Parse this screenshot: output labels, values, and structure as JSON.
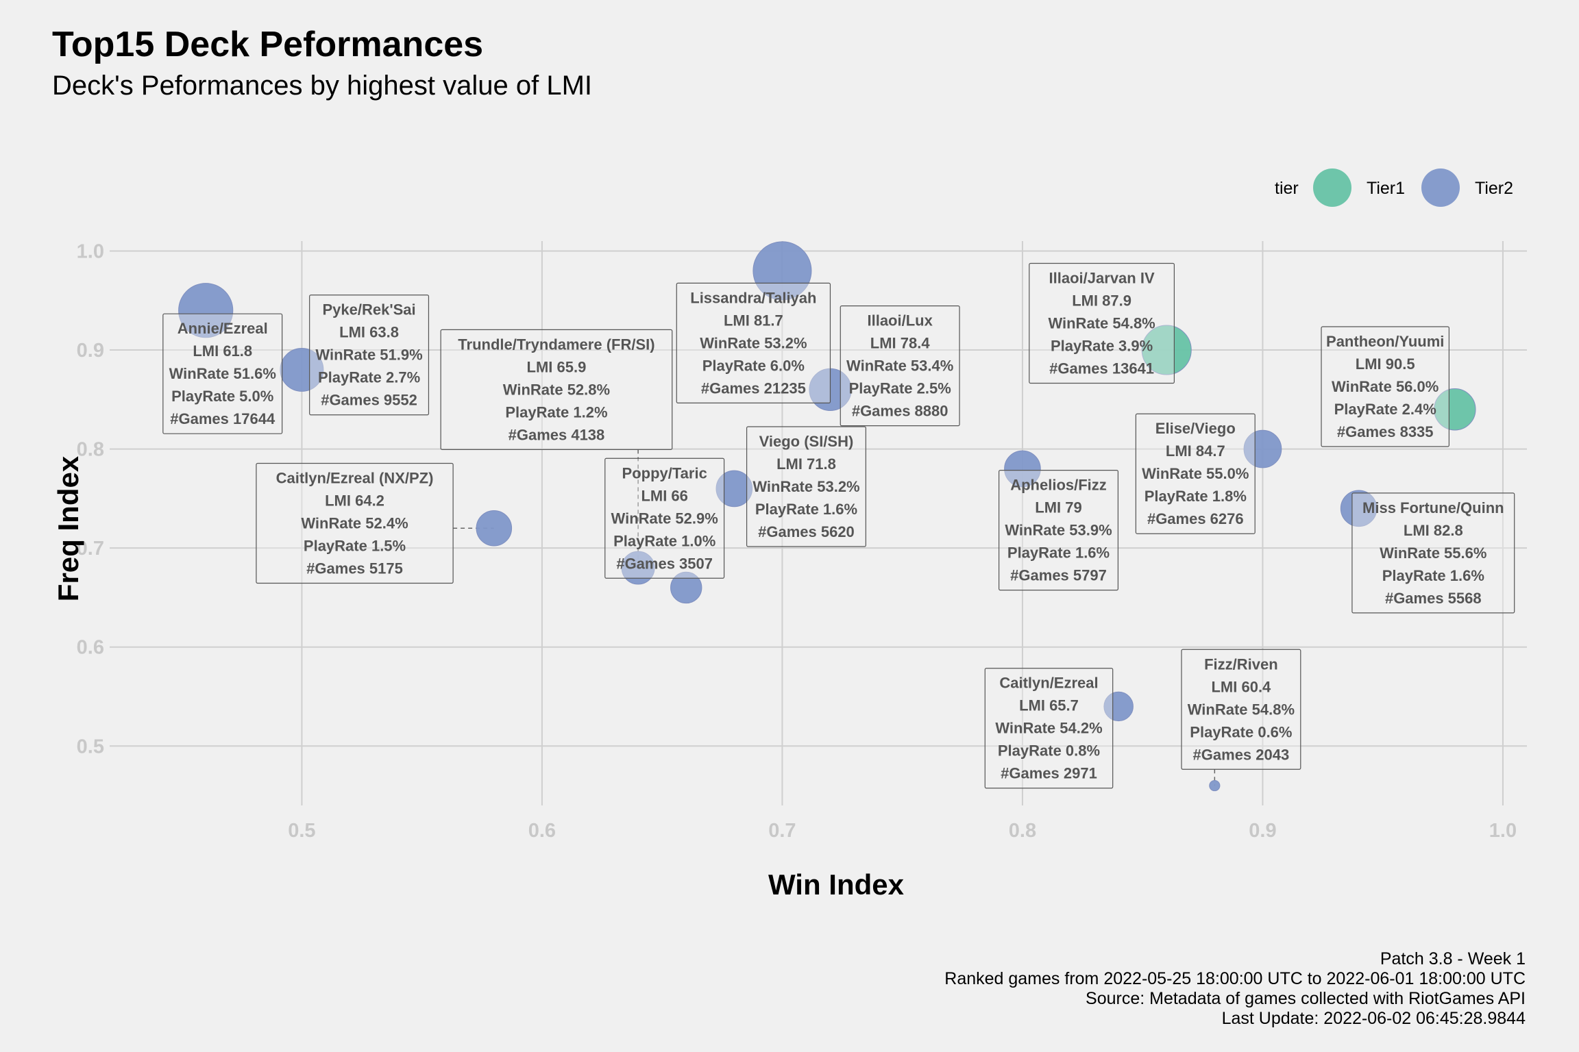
{
  "chart_data": {
    "type": "scatter",
    "title": "Top15 Deck Peformances",
    "subtitle": "Deck's Peformances by highest value of LMI",
    "xlabel": "Win Index",
    "ylabel": "Freq Index",
    "xlim": [
      0.42,
      1.01
    ],
    "ylim": [
      0.44,
      1.01
    ],
    "xticks": [
      "0.5",
      "0.6",
      "0.7",
      "0.8",
      "0.9",
      "1.0"
    ],
    "yticks": [
      "0.5",
      "0.6",
      "0.7",
      "0.8",
      "0.9",
      "1.0"
    ],
    "grid": true,
    "legend": {
      "title": "tier",
      "position": "top-right",
      "entries": [
        {
          "name": "Tier1",
          "color": "#66c2a5"
        },
        {
          "name": "Tier2",
          "color": "#7f97c9"
        }
      ]
    },
    "points": [
      {
        "deck": "Annie/Ezreal",
        "tier": "Tier2",
        "x": 0.46,
        "y": 0.94,
        "lmi": "61.8",
        "winrate": "51.6%",
        "playrate": "5.0%",
        "games": "17644",
        "lx": 0.467,
        "ly": 0.876
      },
      {
        "deck": "Pyke/Rek'Sai",
        "tier": "Tier2",
        "x": 0.5,
        "y": 0.88,
        "lmi": "63.8",
        "winrate": "51.9%",
        "playrate": "2.7%",
        "games": "9552",
        "lx": 0.528,
        "ly": 0.895
      },
      {
        "deck": "Trundle/Tryndamere (FR/SI)",
        "tier": "Tier2",
        "x": 0.64,
        "y": 0.68,
        "lmi": "65.9",
        "winrate": "52.8%",
        "playrate": "1.2%",
        "games": "4138",
        "lx": 0.606,
        "ly": 0.86
      },
      {
        "deck": "Caitlyn/Ezreal (NX/PZ)",
        "tier": "Tier2",
        "x": 0.58,
        "y": 0.72,
        "lmi": "64.2",
        "winrate": "52.4%",
        "playrate": "1.5%",
        "games": "5175",
        "lx": 0.522,
        "ly": 0.725
      },
      {
        "deck": "Poppy/Taric",
        "tier": "Tier2",
        "x": 0.66,
        "y": 0.66,
        "lmi": "66",
        "winrate": "52.9%",
        "playrate": "1.0%",
        "games": "3507",
        "lx": 0.651,
        "ly": 0.73
      },
      {
        "deck": "Lissandra/Taliyah",
        "tier": "Tier2",
        "x": 0.7,
        "y": 0.98,
        "lmi": "81.7",
        "winrate": "53.2%",
        "playrate": "6.0%",
        "games": "21235",
        "lx": 0.688,
        "ly": 0.907
      },
      {
        "deck": "Illaoi/Lux",
        "tier": "Tier2",
        "x": 0.72,
        "y": 0.86,
        "lmi": "78.4",
        "winrate": "53.4%",
        "playrate": "2.5%",
        "games": "8880",
        "lx": 0.749,
        "ly": 0.884
      },
      {
        "deck": "Viego (SI/SH)",
        "tier": "Tier2",
        "x": 0.68,
        "y": 0.76,
        "lmi": "71.8",
        "winrate": "53.2%",
        "playrate": "1.6%",
        "games": "5620",
        "lx": 0.71,
        "ly": 0.762
      },
      {
        "deck": "Aphelios/Fizz",
        "tier": "Tier2",
        "x": 0.8,
        "y": 0.78,
        "lmi": "79",
        "winrate": "53.9%",
        "playrate": "1.6%",
        "games": "5797",
        "lx": 0.815,
        "ly": 0.718
      },
      {
        "deck": "Illaoi/Jarvan IV",
        "tier": "Tier1",
        "x": 0.86,
        "y": 0.9,
        "lmi": "87.9",
        "winrate": "54.8%",
        "playrate": "3.9%",
        "games": "13641",
        "lx": 0.833,
        "ly": 0.927
      },
      {
        "deck": "Elise/Viego",
        "tier": "Tier2",
        "x": 0.9,
        "y": 0.8,
        "lmi": "84.7",
        "winrate": "55.0%",
        "playrate": "1.8%",
        "games": "6276",
        "lx": 0.872,
        "ly": 0.775
      },
      {
        "deck": "Pantheon/Yuumi",
        "tier": "Tier1",
        "x": 0.98,
        "y": 0.84,
        "lmi": "90.5",
        "winrate": "56.0%",
        "playrate": "2.4%",
        "games": "8335",
        "lx": 0.951,
        "ly": 0.863
      },
      {
        "deck": "Miss Fortune/Quinn",
        "tier": "Tier2",
        "x": 0.94,
        "y": 0.74,
        "lmi": "82.8",
        "winrate": "55.6%",
        "playrate": "1.6%",
        "games": "5568",
        "lx": 0.971,
        "ly": 0.695
      },
      {
        "deck": "Caitlyn/Ezreal",
        "tier": "Tier2",
        "x": 0.84,
        "y": 0.54,
        "lmi": "65.7",
        "winrate": "54.2%",
        "playrate": "0.8%",
        "games": "2971",
        "lx": 0.811,
        "ly": 0.518
      },
      {
        "deck": "Fizz/Riven",
        "tier": "Tier2",
        "x": 0.88,
        "y": 0.46,
        "lmi": "60.4",
        "winrate": "54.8%",
        "playrate": "0.6%",
        "games": "2043",
        "lx": 0.891,
        "ly": 0.537
      }
    ],
    "caption": [
      "Patch 3.8 - Week 1",
      "Ranked games from 2022-05-25 18:00:00 UTC to 2022-06-01 18:00:00 UTC",
      "Source: Metadata of games collected with RiotGames API",
      "Last Update: 2022-06-02 06:45:28.9844"
    ]
  }
}
